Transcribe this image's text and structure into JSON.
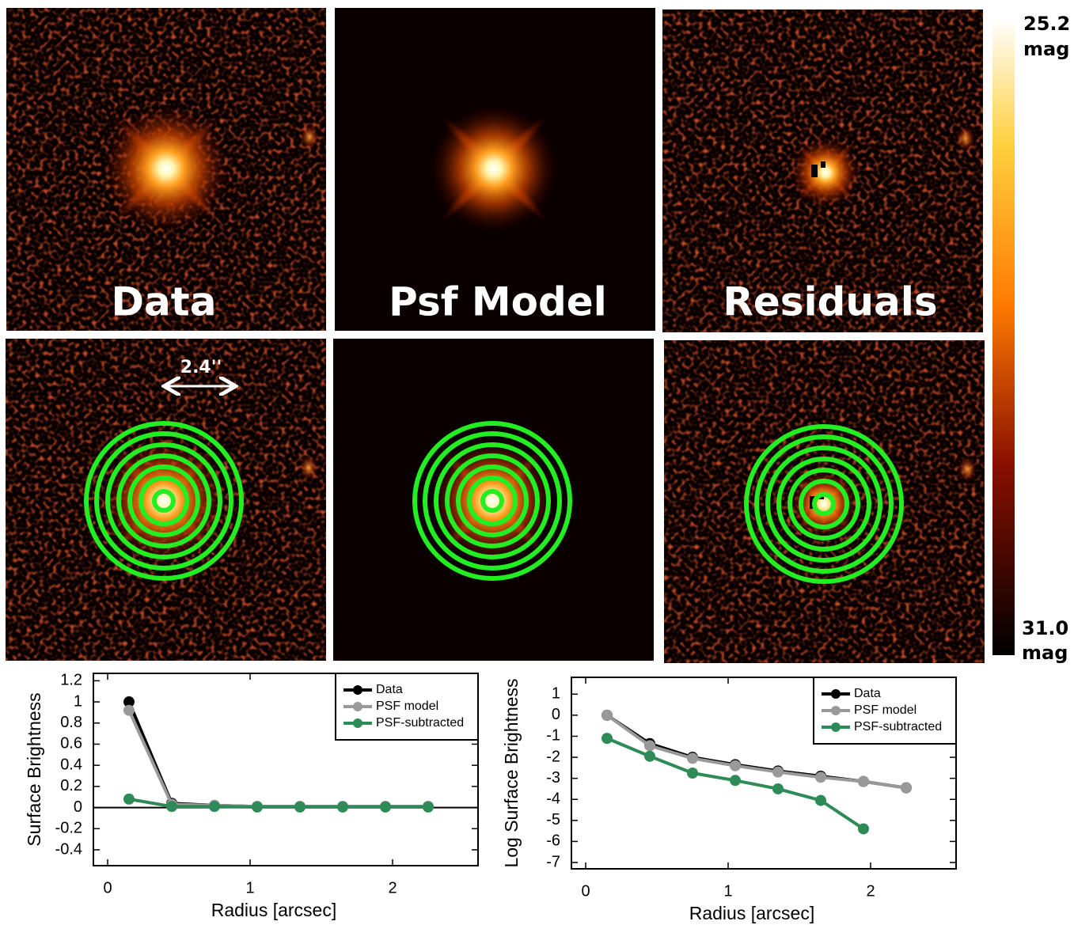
{
  "panels": {
    "titles": [
      "Data",
      "Psf Model",
      "Residuals"
    ],
    "scale_bar": "2.4''"
  },
  "colorbar": {
    "top": [
      "25.2",
      "mag"
    ],
    "bottom": [
      "31.0",
      "mag"
    ]
  },
  "chart_data": [
    {
      "type": "line",
      "xlabel": "Radius [arcsec]",
      "ylabel": "Surface Brightness",
      "xlim": [
        -0.1,
        2.6
      ],
      "ylim": [
        -0.55,
        1.27
      ],
      "xticks": [
        0,
        1,
        2
      ],
      "yticks": [
        -0.4,
        -0.2,
        0,
        0.2,
        0.4,
        0.6,
        0.8,
        1,
        1.2
      ],
      "hline": 0,
      "legend": "upper right",
      "x": [
        0.15,
        0.45,
        0.75,
        1.05,
        1.35,
        1.65,
        1.95,
        2.25
      ],
      "series": [
        {
          "name": "Data",
          "color": "#000000",
          "values": [
            1.0,
            0.04,
            0.02,
            0.01,
            0.01,
            0.01,
            0.01,
            0.01
          ]
        },
        {
          "name": "PSF model",
          "color": "#999999",
          "values": [
            0.92,
            0.03,
            0.02,
            0.01,
            0.01,
            0.01,
            0.01,
            0.01
          ]
        },
        {
          "name": "PSF-subtracted",
          "color": "#2e8b57",
          "values": [
            0.08,
            0.01,
            0.01,
            0.005,
            0.005,
            0.005,
            0.005,
            0.005
          ]
        }
      ]
    },
    {
      "type": "line",
      "xlabel": "Radius [arcsec]",
      "ylabel": "Log Surface Brightness",
      "xlim": [
        -0.1,
        2.6
      ],
      "ylim": [
        -7.3,
        1.8
      ],
      "xticks": [
        0,
        1,
        2
      ],
      "yticks": [
        -7,
        -6,
        -5,
        -4,
        -3,
        -2,
        -1,
        0,
        1
      ],
      "legend": "upper right",
      "x": [
        0.15,
        0.45,
        0.75,
        1.05,
        1.35,
        1.65,
        1.95,
        2.25
      ],
      "series": [
        {
          "name": "Data",
          "color": "#000000",
          "values": [
            0,
            -1.35,
            -2.0,
            -2.35,
            -2.65,
            -2.9,
            -3.15,
            -3.45
          ]
        },
        {
          "name": "PSF model",
          "color": "#999999",
          "values": [
            0,
            -1.45,
            -2.05,
            -2.4,
            -2.7,
            -2.95,
            -3.15,
            -3.45
          ]
        },
        {
          "name": "PSF-subtracted",
          "color": "#2e8b57",
          "values": [
            -1.1,
            -1.95,
            -2.75,
            -3.1,
            -3.5,
            -4.05,
            -5.4,
            null
          ]
        }
      ]
    }
  ]
}
